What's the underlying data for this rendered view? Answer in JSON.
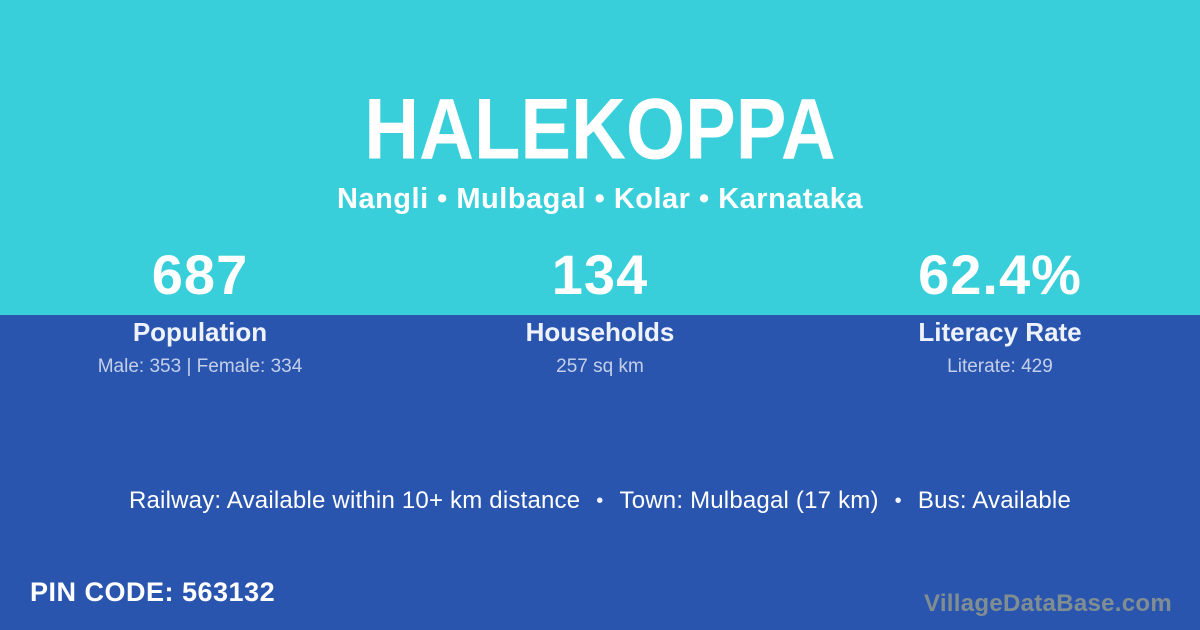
{
  "colors": {
    "top_background": "#38cfda",
    "bottom_background": "#2a55af",
    "text": "#ffffff",
    "watermark_text": "#8a948e"
  },
  "header": {
    "village_name": "HALEKOPPA",
    "location_path": "Nangli • Mulbagal • Kolar • Karnataka"
  },
  "stats": [
    {
      "value": "687",
      "label": "Population",
      "detail": "Male: 353 | Female: 334"
    },
    {
      "value": "134",
      "label": "Households",
      "detail": "257 sq km"
    },
    {
      "value": "62.4%",
      "label": "Literacy Rate",
      "detail": "Literate: 429"
    }
  ],
  "transport_info": {
    "railway": "Railway: Available within 10+ km distance",
    "town": "Town: Mulbagal (17 km)",
    "bus": "Bus: Available",
    "separator": "•"
  },
  "footer": {
    "pin_code": "PIN CODE: 563132",
    "watermark": "VillageDataBase.com"
  }
}
